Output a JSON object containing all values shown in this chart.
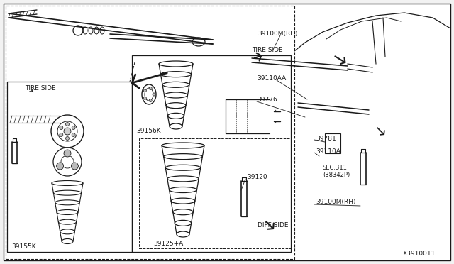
{
  "bg_color": "#f2f2f2",
  "inner_bg": "#ffffff",
  "line_color": "#1a1a1a",
  "font_size": 6.5,
  "diagram_id": "X3910011",
  "labels": {
    "tire_side_tr": "TIRE SIDE",
    "tire_side_bl": "TIRE SIDE",
    "diff_side": "DIFF SIDE",
    "39100M_top": "39100M(RH)",
    "39110AA": "39110AA",
    "39776": "39776",
    "39156K": "39156K",
    "39125A": "39125+A",
    "39155K": "39155K",
    "39120": "39120",
    "39100M_bot": "39100M(RH)",
    "39781": "39781",
    "39110A": "39110A",
    "sec311": "SEC.311\n(38342P)"
  }
}
